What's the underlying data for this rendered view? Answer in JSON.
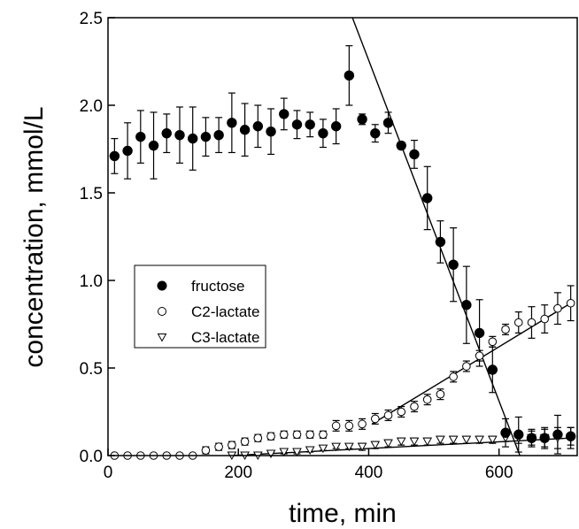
{
  "chart_data": {
    "type": "scatter",
    "title": "",
    "xlabel": "time, min",
    "ylabel": "concentration, mmol/L",
    "xlim": [
      0,
      720
    ],
    "ylim": [
      0,
      2.5
    ],
    "x_ticks": [
      "0",
      "200",
      "400",
      "600"
    ],
    "y_ticks": [
      "0.0",
      "0.5",
      "1.0",
      "1.5",
      "2.0",
      "2.5"
    ],
    "grid": false,
    "legend_position": "center-left",
    "series": [
      {
        "name": "fructose",
        "marker": "filled-circle",
        "points": [
          {
            "x": 10,
            "y": 1.71,
            "err": 0.1
          },
          {
            "x": 30,
            "y": 1.74,
            "err": 0.16
          },
          {
            "x": 50,
            "y": 1.82,
            "err": 0.15
          },
          {
            "x": 70,
            "y": 1.77,
            "err": 0.19
          },
          {
            "x": 90,
            "y": 1.84,
            "err": 0.11
          },
          {
            "x": 110,
            "y": 1.83,
            "err": 0.16
          },
          {
            "x": 130,
            "y": 1.81,
            "err": 0.18
          },
          {
            "x": 150,
            "y": 1.82,
            "err": 0.11
          },
          {
            "x": 170,
            "y": 1.83,
            "err": 0.1
          },
          {
            "x": 190,
            "y": 1.9,
            "err": 0.17
          },
          {
            "x": 210,
            "y": 1.86,
            "err": 0.15
          },
          {
            "x": 230,
            "y": 1.88,
            "err": 0.12
          },
          {
            "x": 250,
            "y": 1.85,
            "err": 0.13
          },
          {
            "x": 270,
            "y": 1.95,
            "err": 0.09
          },
          {
            "x": 290,
            "y": 1.89,
            "err": 0.08
          },
          {
            "x": 310,
            "y": 1.89,
            "err": 0.07
          },
          {
            "x": 330,
            "y": 1.84,
            "err": 0.08
          },
          {
            "x": 350,
            "y": 1.88,
            "err": 0.1
          },
          {
            "x": 370,
            "y": 2.17,
            "err": 0.17
          },
          {
            "x": 390,
            "y": 1.92,
            "err": 0.03
          },
          {
            "x": 410,
            "y": 1.84,
            "err": 0.05
          },
          {
            "x": 430,
            "y": 1.9,
            "err": 0.06
          },
          {
            "x": 450,
            "y": 1.77,
            "err": 0.02
          },
          {
            "x": 470,
            "y": 1.72,
            "err": 0.08
          },
          {
            "x": 490,
            "y": 1.47,
            "err": 0.18
          },
          {
            "x": 510,
            "y": 1.22,
            "err": 0.12
          },
          {
            "x": 530,
            "y": 1.09,
            "err": 0.21
          },
          {
            "x": 550,
            "y": 0.86,
            "err": 0.22
          },
          {
            "x": 570,
            "y": 0.7,
            "err": 0.19
          },
          {
            "x": 590,
            "y": 0.49,
            "err": 0.13
          },
          {
            "x": 610,
            "y": 0.13,
            "err": 0.08
          },
          {
            "x": 630,
            "y": 0.12,
            "err": 0.1
          },
          {
            "x": 650,
            "y": 0.1,
            "err": 0.05
          },
          {
            "x": 670,
            "y": 0.1,
            "err": 0.06
          },
          {
            "x": 690,
            "y": 0.12,
            "err": 0.11
          },
          {
            "x": 710,
            "y": 0.11,
            "err": 0.05
          }
        ]
      },
      {
        "name": "C2-lactate",
        "marker": "open-circle",
        "points": [
          {
            "x": 10,
            "y": 0.0,
            "err": 0
          },
          {
            "x": 30,
            "y": 0.0,
            "err": 0
          },
          {
            "x": 50,
            "y": 0.0,
            "err": 0
          },
          {
            "x": 70,
            "y": 0.0,
            "err": 0
          },
          {
            "x": 90,
            "y": 0.0,
            "err": 0
          },
          {
            "x": 110,
            "y": 0.0,
            "err": 0
          },
          {
            "x": 130,
            "y": 0.0,
            "err": 0
          },
          {
            "x": 150,
            "y": 0.03,
            "err": 0.02
          },
          {
            "x": 170,
            "y": 0.05,
            "err": 0.02
          },
          {
            "x": 190,
            "y": 0.06,
            "err": 0.02
          },
          {
            "x": 210,
            "y": 0.08,
            "err": 0.02
          },
          {
            "x": 230,
            "y": 0.1,
            "err": 0.02
          },
          {
            "x": 250,
            "y": 0.11,
            "err": 0.02
          },
          {
            "x": 270,
            "y": 0.12,
            "err": 0.02
          },
          {
            "x": 290,
            "y": 0.12,
            "err": 0.02
          },
          {
            "x": 310,
            "y": 0.12,
            "err": 0.02
          },
          {
            "x": 330,
            "y": 0.12,
            "err": 0.02
          },
          {
            "x": 350,
            "y": 0.17,
            "err": 0.03
          },
          {
            "x": 370,
            "y": 0.17,
            "err": 0.03
          },
          {
            "x": 390,
            "y": 0.18,
            "err": 0.03
          },
          {
            "x": 410,
            "y": 0.21,
            "err": 0.03
          },
          {
            "x": 430,
            "y": 0.23,
            "err": 0.03
          },
          {
            "x": 450,
            "y": 0.25,
            "err": 0.03
          },
          {
            "x": 470,
            "y": 0.28,
            "err": 0.03
          },
          {
            "x": 490,
            "y": 0.32,
            "err": 0.03
          },
          {
            "x": 510,
            "y": 0.35,
            "err": 0.03
          },
          {
            "x": 530,
            "y": 0.45,
            "err": 0.03
          },
          {
            "x": 550,
            "y": 0.51,
            "err": 0.03
          },
          {
            "x": 570,
            "y": 0.57,
            "err": 0.03
          },
          {
            "x": 590,
            "y": 0.65,
            "err": 0.03
          },
          {
            "x": 610,
            "y": 0.72,
            "err": 0.03
          },
          {
            "x": 630,
            "y": 0.76,
            "err": 0.06
          },
          {
            "x": 650,
            "y": 0.76,
            "err": 0.09
          },
          {
            "x": 670,
            "y": 0.78,
            "err": 0.08
          },
          {
            "x": 690,
            "y": 0.84,
            "err": 0.09
          },
          {
            "x": 710,
            "y": 0.87,
            "err": 0.1
          }
        ]
      },
      {
        "name": "C3-lactate",
        "marker": "open-triangle-down",
        "points": [
          {
            "x": 190,
            "y": 0.0,
            "err": 0
          },
          {
            "x": 210,
            "y": 0.0,
            "err": 0
          },
          {
            "x": 230,
            "y": 0.0,
            "err": 0
          },
          {
            "x": 250,
            "y": 0.01,
            "err": 0.01
          },
          {
            "x": 270,
            "y": 0.02,
            "err": 0.01
          },
          {
            "x": 290,
            "y": 0.02,
            "err": 0.01
          },
          {
            "x": 310,
            "y": 0.03,
            "err": 0.01
          },
          {
            "x": 330,
            "y": 0.04,
            "err": 0.01
          },
          {
            "x": 350,
            "y": 0.05,
            "err": 0.01
          },
          {
            "x": 370,
            "y": 0.05,
            "err": 0.01
          },
          {
            "x": 390,
            "y": 0.05,
            "err": 0.02
          },
          {
            "x": 410,
            "y": 0.06,
            "err": 0.02
          },
          {
            "x": 430,
            "y": 0.07,
            "err": 0.02
          },
          {
            "x": 450,
            "y": 0.08,
            "err": 0.02
          },
          {
            "x": 470,
            "y": 0.08,
            "err": 0.02
          },
          {
            "x": 490,
            "y": 0.08,
            "err": 0.02
          },
          {
            "x": 510,
            "y": 0.09,
            "err": 0.02
          },
          {
            "x": 530,
            "y": 0.09,
            "err": 0.02
          },
          {
            "x": 550,
            "y": 0.09,
            "err": 0.02
          },
          {
            "x": 570,
            "y": 0.09,
            "err": 0.02
          },
          {
            "x": 590,
            "y": 0.09,
            "err": 0.02
          },
          {
            "x": 610,
            "y": 0.1,
            "err": 0.02
          },
          {
            "x": 630,
            "y": 0.1,
            "err": 0.03
          },
          {
            "x": 650,
            "y": 0.1,
            "err": 0.04
          },
          {
            "x": 670,
            "y": 0.1,
            "err": 0.05
          },
          {
            "x": 690,
            "y": 0.1,
            "err": 0.06
          },
          {
            "x": 710,
            "y": 0.1,
            "err": 0.06
          }
        ]
      }
    ],
    "fit_lines": [
      {
        "for": "fructose",
        "points": [
          [
            373,
            2.52
          ],
          [
            632,
            0.0
          ]
        ]
      },
      {
        "for": "C2-lactate",
        "points": [
          [
            405,
            0.18
          ],
          [
            710,
            0.87
          ]
        ]
      },
      {
        "for": "C3-lactate",
        "points": [
          [
            190,
            0.0
          ],
          [
            710,
            0.1
          ]
        ]
      }
    ]
  }
}
